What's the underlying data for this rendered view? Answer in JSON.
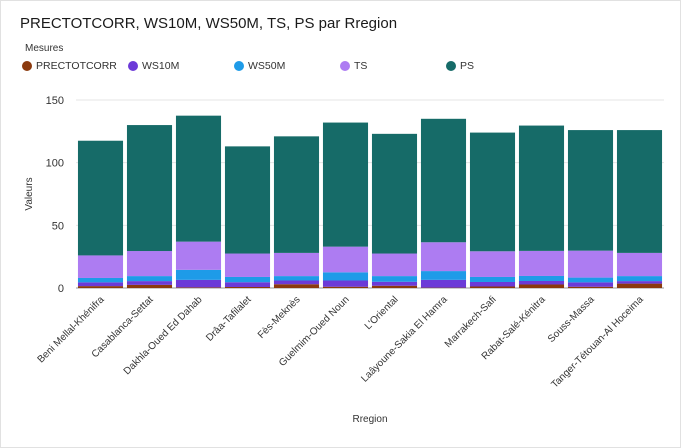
{
  "chart_data": {
    "type": "bar",
    "stacked": true,
    "title": "PRECTOTCORR, WS10M, WS50M, TS, PS par Rregion",
    "xlabel": "Rregion",
    "ylabel": "Valeurs",
    "ylim": [
      0,
      150
    ],
    "yticks": [
      0,
      50,
      100,
      150
    ],
    "grid": true,
    "legend_title": "Mesures",
    "legend_position": "top-left",
    "categories": [
      "Beni Mellal-Khénifra",
      "Casablanca-Settat",
      "Dakhla-Oued Ed Dahab",
      "Drâa-Tafilalet",
      "Fès-Meknès",
      "Guelmim-Oued Noun",
      "L'Oriental",
      "Laâyoune-Sakia El Hamra",
      "Marrakech-Safi",
      "Rabat-Salé-Kénitra",
      "Souss-Massa",
      "Tanger-Tétouan-Al Hoceima"
    ],
    "series": [
      {
        "name": "PRECTOTCORR",
        "color": "#8b3a0e",
        "values": [
          1.5,
          2.5,
          0.5,
          0.8,
          3.0,
          1.0,
          1.8,
          0.3,
          1.2,
          2.8,
          1.0,
          3.5
        ]
      },
      {
        "name": "WS10M",
        "color": "#6c3ad8",
        "values": [
          3.0,
          3.0,
          6.0,
          3.8,
          3.0,
          5.0,
          3.2,
          6.2,
          3.6,
          2.8,
          3.5,
          2.0
        ]
      },
      {
        "name": "WS50M",
        "color": "#1e9be8",
        "values": [
          3.5,
          4.0,
          8.0,
          4.2,
          3.5,
          6.5,
          4.5,
          7.0,
          4.0,
          4.0,
          3.8,
          4.0
        ]
      },
      {
        "name": "TS",
        "color": "#ad7cf2",
        "values": [
          18.0,
          20.0,
          22.5,
          18.7,
          18.5,
          20.5,
          18.0,
          23.0,
          20.5,
          20.0,
          21.5,
          18.5
        ]
      },
      {
        "name": "PS",
        "color": "#166b68",
        "values": [
          91.5,
          100.5,
          100.5,
          85.5,
          93.0,
          99.0,
          95.5,
          98.5,
          94.7,
          100.0,
          96.2,
          98.0
        ]
      }
    ]
  }
}
